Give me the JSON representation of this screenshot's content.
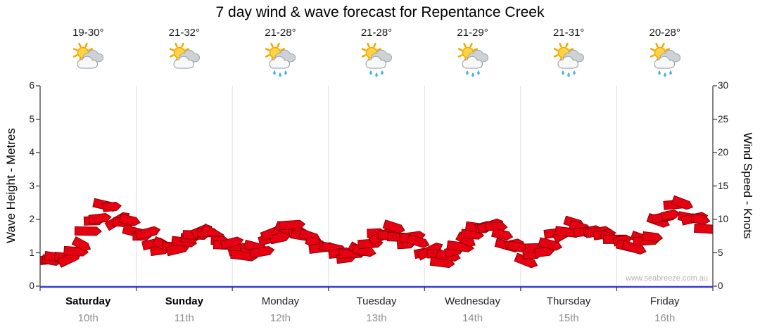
{
  "title": "7 day wind & wave forecast for Repentance Creek",
  "watermark": "www.seabreeze.com.au",
  "axes": {
    "left_label": "Wave Height - Metres",
    "right_label": "Wind Speed - Knots"
  },
  "days": [
    {
      "name": "Saturday",
      "date": "10th",
      "temp": "19-30°",
      "icon": "sun-cloud",
      "weekend": true
    },
    {
      "name": "Sunday",
      "date": "11th",
      "temp": "21-32°",
      "icon": "sun-cloud",
      "weekend": true
    },
    {
      "name": "Monday",
      "date": "12th",
      "temp": "21-28°",
      "icon": "sun-cloud-rain",
      "weekend": false
    },
    {
      "name": "Tuesday",
      "date": "13th",
      "temp": "21-28°",
      "icon": "sun-cloud-rain",
      "weekend": false
    },
    {
      "name": "Wednesday",
      "date": "14th",
      "temp": "21-29°",
      "icon": "sun-cloud-rain",
      "weekend": false
    },
    {
      "name": "Thursday",
      "date": "15th",
      "temp": "21-31°",
      "icon": "sun-cloud-rain",
      "weekend": false
    },
    {
      "name": "Friday",
      "date": "16th",
      "temp": "20-28°",
      "icon": "sun-cloud-rain",
      "weekend": false
    }
  ],
  "chart_data": {
    "type": "bar",
    "subtype": "wind-direction-barb-band",
    "title": "7 day wind & wave forecast for Repentance Creek",
    "categories": [
      "Saturday 10th",
      "Sunday 11th",
      "Monday 12th",
      "Tuesday 13th",
      "Wednesday 14th",
      "Thursday 15th",
      "Friday 16th"
    ],
    "samples_per_day": 8,
    "y_left": {
      "label": "Wave Height - Metres",
      "min": 0,
      "max": 6,
      "ticks": [
        0,
        1,
        2,
        3,
        4,
        5,
        6
      ]
    },
    "y_right": {
      "label": "Wind Speed - Knots",
      "min": 0,
      "max": 30,
      "ticks": [
        0,
        5,
        10,
        15,
        20,
        25,
        30
      ]
    },
    "wind_speed_knots": [
      3.5,
      4.5,
      4.0,
      6.5,
      9.5,
      12.0,
      10.5,
      9.0,
      8.0,
      6.5,
      5.5,
      6.0,
      7.0,
      8.5,
      7.5,
      6.5,
      5.5,
      5.0,
      6.0,
      7.5,
      8.5,
      8.5,
      7.0,
      6.0,
      5.5,
      4.5,
      5.0,
      6.5,
      8.0,
      8.0,
      7.0,
      6.5,
      5.0,
      4.0,
      5.0,
      7.0,
      8.5,
      9.5,
      7.5,
      6.0,
      4.5,
      5.0,
      6.5,
      8.0,
      9.0,
      8.5,
      8.0,
      7.5,
      6.5,
      6.0,
      7.0,
      9.0,
      11.5,
      12.0,
      10.0,
      9.0
    ],
    "wind_direction_deg": [
      115,
      135,
      100,
      145,
      110,
      130,
      95,
      140,
      120,
      100,
      140,
      110,
      130,
      100,
      145,
      115,
      105,
      140,
      115,
      95,
      135,
      110,
      145,
      120,
      130,
      105,
      145,
      120,
      100,
      140,
      110,
      130,
      95,
      135,
      110,
      145,
      120,
      100,
      140,
      115,
      140,
      110,
      130,
      95,
      145,
      115,
      105,
      135,
      110,
      145,
      120,
      135,
      100,
      140,
      115,
      130
    ],
    "bar_color": "#e60011",
    "bar_outline": "#7e0000",
    "baseline_color": "#3c3ccd",
    "grid_color": "#dcdfe8",
    "legend": "none",
    "grid": "vertical-day-separators-only"
  }
}
